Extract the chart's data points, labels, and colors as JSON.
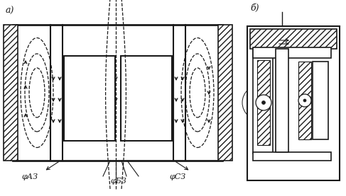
{
  "bg_color": "#ffffff",
  "line_color": "#1a1a1a",
  "label_a": "а)",
  "label_b": "б)",
  "phi_a": "φАЗ",
  "phi_b": "φБЗ",
  "phi_c": "φСЗ",
  "fig_width": 4.87,
  "fig_height": 2.77,
  "dpi": 100
}
